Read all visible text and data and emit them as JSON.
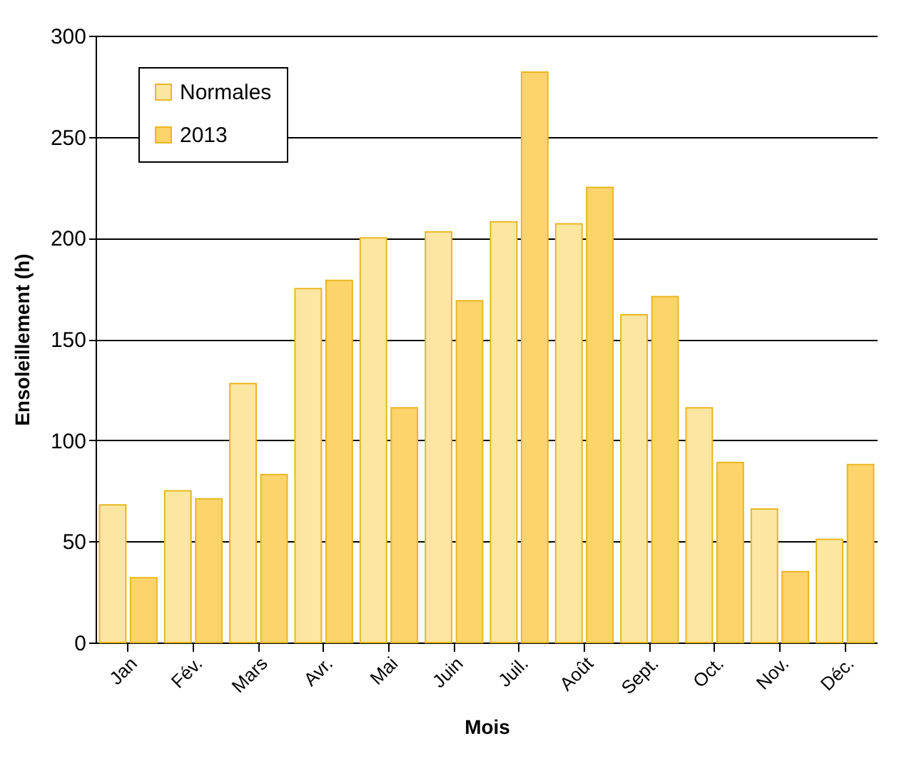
{
  "chart_data": {
    "type": "bar",
    "xlabel": "Mois",
    "ylabel": "Ensoleillement  (h)",
    "categories": [
      "Jan",
      "Fév.",
      "Mars",
      "Avr.",
      "Mai",
      "Juin",
      "Juil.",
      "Août",
      "Sept.",
      "Oct.",
      "Nov.",
      "Déc."
    ],
    "series": [
      {
        "name": "Normales",
        "color": "#fbe6a2",
        "values": [
          68,
          75,
          128,
          175,
          200,
          203,
          208,
          207,
          162,
          116,
          66,
          51
        ]
      },
      {
        "name": "2013",
        "color": "#fdd36b",
        "values": [
          32,
          71,
          83,
          179,
          116,
          169,
          282,
          225,
          171,
          89,
          35,
          88
        ]
      }
    ],
    "ylim": [
      0,
      300
    ],
    "yticks": [
      0,
      50,
      100,
      150,
      200,
      250,
      300
    ],
    "grid": "y",
    "legend": "top left"
  }
}
